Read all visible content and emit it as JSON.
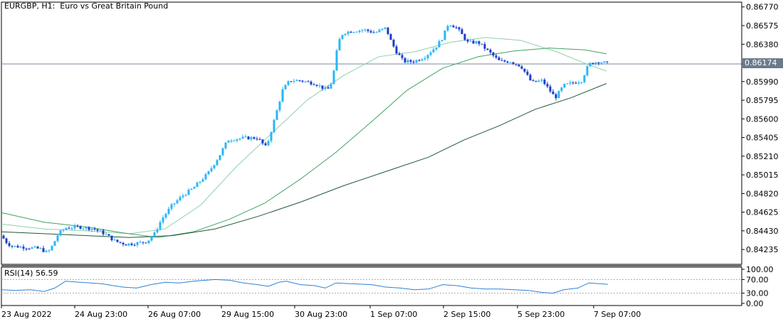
{
  "chart_title": "EURGBP, H1:  Euro vs Great Britain Pound",
  "current_price_label": "0.86174",
  "chart_data": {
    "type": "candlestick",
    "symbol": "EURGBP",
    "timeframe": "H1",
    "price_axis": {
      "ticks": [
        "0.86770",
        "0.86575",
        "0.86380",
        "0.86174",
        "0.85990",
        "0.85795",
        "0.85600",
        "0.85405",
        "0.85210",
        "0.85015",
        "0.84820",
        "0.84625",
        "0.84430",
        "0.84235"
      ],
      "ylim": [
        0.8408,
        0.8682
      ]
    },
    "time_axis": {
      "labels": [
        "23 Aug 2022",
        "24 Aug 23:00",
        "26 Aug 07:00",
        "29 Aug 15:00",
        "30 Aug 23:00",
        "1 Sep 07:00",
        "2 Sep 15:00",
        "5 Sep 23:00",
        "7 Sep 07:00"
      ]
    },
    "close_path": [
      [
        0,
        0.8438
      ],
      [
        8,
        0.843
      ],
      [
        15,
        0.8427
      ],
      [
        30,
        0.8426
      ],
      [
        45,
        0.8425
      ],
      [
        55,
        0.8424
      ],
      [
        65,
        0.842
      ],
      [
        72,
        0.8428
      ],
      [
        80,
        0.844
      ],
      [
        90,
        0.8446
      ],
      [
        110,
        0.8447
      ],
      [
        130,
        0.8445
      ],
      [
        145,
        0.844
      ],
      [
        160,
        0.8432
      ],
      [
        175,
        0.8429
      ],
      [
        190,
        0.843
      ],
      [
        205,
        0.8432
      ],
      [
        215,
        0.844
      ],
      [
        225,
        0.8455
      ],
      [
        240,
        0.847
      ],
      [
        255,
        0.848
      ],
      [
        270,
        0.8488
      ],
      [
        290,
        0.8503
      ],
      [
        305,
        0.852
      ],
      [
        318,
        0.8538
      ],
      [
        340,
        0.854
      ],
      [
        360,
        0.854
      ],
      [
        372,
        0.853
      ],
      [
        380,
        0.855
      ],
      [
        395,
        0.859
      ],
      [
        405,
        0.86
      ],
      [
        420,
        0.86
      ],
      [
        440,
        0.8597
      ],
      [
        458,
        0.859
      ],
      [
        465,
        0.86
      ],
      [
        473,
        0.864
      ],
      [
        480,
        0.865
      ],
      [
        495,
        0.8652
      ],
      [
        510,
        0.8653
      ],
      [
        525,
        0.865
      ],
      [
        540,
        0.8655
      ],
      [
        548,
        0.864
      ],
      [
        555,
        0.863
      ],
      [
        565,
        0.862
      ],
      [
        580,
        0.862
      ],
      [
        595,
        0.8625
      ],
      [
        610,
        0.8635
      ],
      [
        620,
        0.8645
      ],
      [
        628,
        0.866
      ],
      [
        640,
        0.8655
      ],
      [
        655,
        0.864
      ],
      [
        670,
        0.864
      ],
      [
        685,
        0.863
      ],
      [
        700,
        0.862
      ],
      [
        715,
        0.862
      ],
      [
        730,
        0.8615
      ],
      [
        745,
        0.8598
      ],
      [
        760,
        0.86
      ],
      [
        770,
        0.859
      ],
      [
        778,
        0.8582
      ],
      [
        790,
        0.8595
      ],
      [
        805,
        0.8598
      ],
      [
        815,
        0.86
      ],
      [
        825,
        0.8617
      ],
      [
        838,
        0.862
      ],
      [
        852,
        0.8618
      ]
    ],
    "moving_averages": [
      {
        "color": "#90d0a8",
        "values": [
          [
            0,
            0.845
          ],
          [
            60,
            0.8445
          ],
          [
            120,
            0.8443
          ],
          [
            180,
            0.844
          ],
          [
            230,
            0.8445
          ],
          [
            280,
            0.847
          ],
          [
            330,
            0.851
          ],
          [
            380,
            0.8545
          ],
          [
            430,
            0.858
          ],
          [
            480,
            0.8605
          ],
          [
            530,
            0.8625
          ],
          [
            580,
            0.863
          ],
          [
            630,
            0.864
          ],
          [
            680,
            0.8645
          ],
          [
            730,
            0.8642
          ],
          [
            780,
            0.863
          ],
          [
            820,
            0.8618
          ],
          [
            850,
            0.861
          ]
        ]
      },
      {
        "color": "#3fa35f",
        "values": [
          [
            0,
            0.8462
          ],
          [
            60,
            0.8452
          ],
          [
            120,
            0.8447
          ],
          [
            170,
            0.8441
          ],
          [
            220,
            0.8436
          ],
          [
            270,
            0.8442
          ],
          [
            320,
            0.8455
          ],
          [
            370,
            0.8472
          ],
          [
            420,
            0.8497
          ],
          [
            470,
            0.8525
          ],
          [
            520,
            0.8557
          ],
          [
            570,
            0.859
          ],
          [
            620,
            0.8613
          ],
          [
            670,
            0.8625
          ],
          [
            720,
            0.8631
          ],
          [
            770,
            0.8634
          ],
          [
            820,
            0.8632
          ],
          [
            850,
            0.8628
          ]
        ]
      },
      {
        "color": "#1e5a32",
        "values": [
          [
            0,
            0.8442
          ],
          [
            60,
            0.844
          ],
          [
            120,
            0.8438
          ],
          [
            180,
            0.8436
          ],
          [
            240,
            0.8438
          ],
          [
            300,
            0.8445
          ],
          [
            360,
            0.8458
          ],
          [
            420,
            0.8473
          ],
          [
            480,
            0.849
          ],
          [
            540,
            0.8505
          ],
          [
            600,
            0.852
          ],
          [
            650,
            0.8538
          ],
          [
            700,
            0.8553
          ],
          [
            750,
            0.857
          ],
          [
            800,
            0.8582
          ],
          [
            850,
            0.8597
          ]
        ]
      }
    ],
    "rsi": {
      "label": "RSI(14) 56.59",
      "period": 14,
      "value": 56.59,
      "levels_ticks": [
        "100.00",
        "70.00",
        "30.00",
        "0.00"
      ],
      "ylim": [
        0,
        100
      ],
      "path": [
        [
          0,
          40
        ],
        [
          20,
          38
        ],
        [
          40,
          40
        ],
        [
          60,
          35
        ],
        [
          75,
          45
        ],
        [
          90,
          65
        ],
        [
          110,
          62
        ],
        [
          140,
          58
        ],
        [
          170,
          48
        ],
        [
          190,
          45
        ],
        [
          210,
          55
        ],
        [
          230,
          62
        ],
        [
          250,
          60
        ],
        [
          270,
          65
        ],
        [
          300,
          70
        ],
        [
          320,
          68
        ],
        [
          340,
          60
        ],
        [
          360,
          55
        ],
        [
          375,
          50
        ],
        [
          390,
          62
        ],
        [
          400,
          65
        ],
        [
          420,
          55
        ],
        [
          440,
          52
        ],
        [
          455,
          45
        ],
        [
          470,
          60
        ],
        [
          490,
          58
        ],
        [
          520,
          55
        ],
        [
          540,
          48
        ],
        [
          560,
          45
        ],
        [
          580,
          40
        ],
        [
          600,
          42
        ],
        [
          620,
          55
        ],
        [
          640,
          52
        ],
        [
          660,
          45
        ],
        [
          680,
          42
        ],
        [
          700,
          42
        ],
        [
          720,
          40
        ],
        [
          740,
          38
        ],
        [
          760,
          32
        ],
        [
          775,
          30
        ],
        [
          790,
          40
        ],
        [
          810,
          45
        ],
        [
          825,
          60
        ],
        [
          840,
          58
        ],
        [
          852,
          56
        ]
      ]
    }
  }
}
